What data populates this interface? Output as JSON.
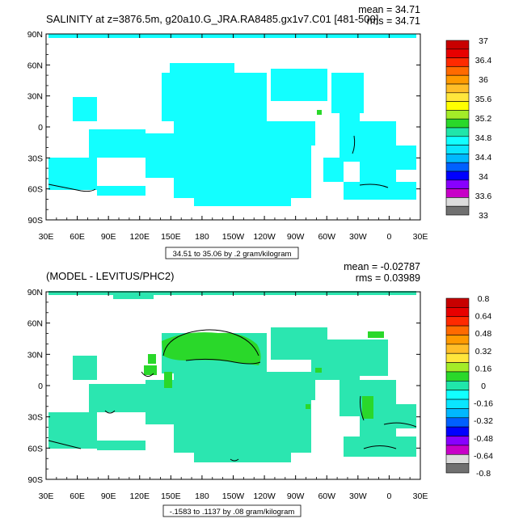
{
  "chart_data": [
    {
      "type": "heatmap",
      "title": "SALINITY at z=3876.5m, g20a10.G_JRA.RA8485.gx1v7.C01 [481-500]",
      "stats": {
        "mean": "mean = 34.71",
        "rms": "rms = 34.71"
      },
      "x_ticks": [
        "30E",
        "60E",
        "90E",
        "120E",
        "150E",
        "180",
        "150W",
        "120W",
        "90W",
        "60W",
        "30W",
        "0",
        "30E"
      ],
      "y_ticks": [
        "90N",
        "60N",
        "30N",
        "0",
        "30S",
        "60S",
        "90S"
      ],
      "contour_note": "34.51 to 35.06 by .2 gram/kilogram",
      "colorbar": {
        "labels": [
          "37",
          "36.4",
          "36",
          "35.6",
          "35.2",
          "34.8",
          "34.4",
          "34",
          "33.6",
          "33"
        ],
        "colors": [
          "#c80000",
          "#e80000",
          "#ff2a00",
          "#ff6a00",
          "#ff9a00",
          "#ffbe28",
          "#ffe63c",
          "#ffff00",
          "#a4ec28",
          "#2ad82a",
          "#20e6aa",
          "#12ffff",
          "#0ae6ff",
          "#00b8ff",
          "#0060ff",
          "#0000ff",
          "#8800ff",
          "#c800c8",
          "#dcdcdc",
          "#707070"
        ]
      },
      "ocean_color": "#12ffff"
    },
    {
      "type": "heatmap",
      "title": "(MODEL - LEVITUS/PHC2)",
      "stats": {
        "mean": "mean = -0.02787",
        "rms": "rms = 0.03989"
      },
      "x_ticks": [
        "30E",
        "60E",
        "90E",
        "120E",
        "150E",
        "180",
        "150W",
        "120W",
        "90W",
        "60W",
        "30W",
        "0",
        "30E"
      ],
      "y_ticks": [
        "90N",
        "60N",
        "30N",
        "0",
        "30S",
        "60S",
        "90S"
      ],
      "contour_note": "-.1583 to .1137 by .08 gram/kilogram",
      "colorbar": {
        "labels": [
          "0.8",
          "0.64",
          "0.48",
          "0.32",
          "0.16",
          "0",
          "-0.16",
          "-0.32",
          "-0.48",
          "-0.64",
          "-0.8"
        ],
        "colors": [
          "#c80000",
          "#e80000",
          "#ff2a00",
          "#ff6a00",
          "#ff9a00",
          "#ffbe28",
          "#ffe63c",
          "#a4ec28",
          "#2ad82a",
          "#20e6aa",
          "#12ffff",
          "#0ae6ff",
          "#00b8ff",
          "#0060ff",
          "#0000ff",
          "#8800ff",
          "#c800c8",
          "#dcdcdc",
          "#707070"
        ]
      },
      "ocean_color": "#2be6b0",
      "highlight_color": "#2ad82a"
    }
  ]
}
